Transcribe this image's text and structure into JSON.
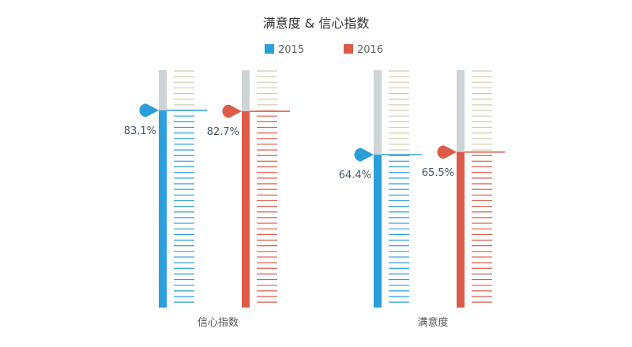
{
  "chart_data": {
    "type": "bar",
    "title": "满意度 & 信心指数",
    "categories": [
      "信心指数",
      "满意度"
    ],
    "series": [
      {
        "name": "2015",
        "color": "#2b9fd9",
        "values": [
          83.1,
          64.4
        ]
      },
      {
        "name": "2016",
        "color": "#dc5b49",
        "values": [
          82.7,
          65.5
        ]
      }
    ],
    "value_labels": [
      [
        "83.1%",
        "82.7%"
      ],
      [
        "64.4%",
        "65.5%"
      ]
    ],
    "ylim": [
      0,
      100
    ],
    "legend_position": "top-center",
    "track_color": "#ced3d6",
    "tick_color_empty": "#d4ccb0"
  }
}
